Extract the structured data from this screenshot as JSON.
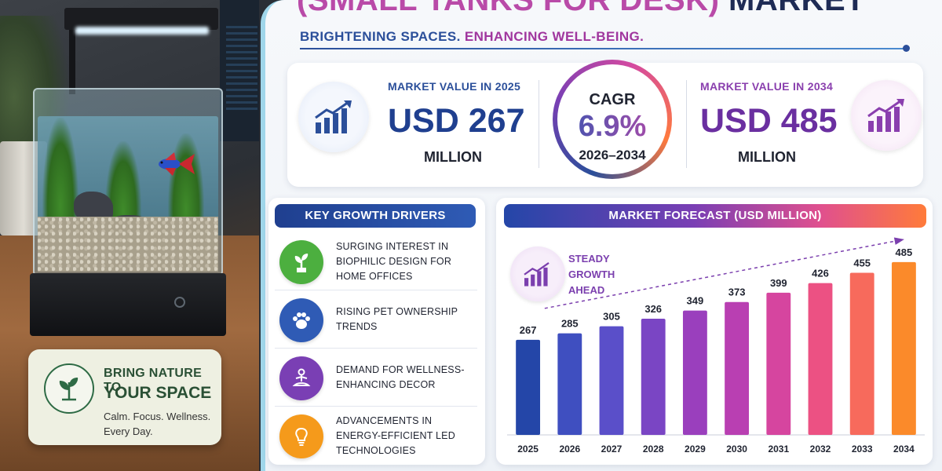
{
  "header": {
    "title_part1": "(SMALL TANKS FOR DESK)",
    "title_part2": "MARKET",
    "tagline_part1": "BRIGHTENING SPACES.",
    "tagline_part2": "ENHANCING WELL-BEING."
  },
  "stats": {
    "value_2025": {
      "label": "MARKET VALUE IN 2025",
      "amount": "USD 267",
      "unit": "MILLION"
    },
    "cagr": {
      "label": "CAGR",
      "value": "6.9%",
      "period": "2026–2034"
    },
    "value_2034": {
      "label": "MARKET VALUE IN 2034",
      "amount": "USD 485",
      "unit": "MILLION"
    }
  },
  "drivers": {
    "heading": "KEY GROWTH DRIVERS",
    "items": [
      {
        "text": "SURGING INTEREST IN BIOPHILIC DESIGN FOR HOME OFFICES",
        "icon": "plant-icon",
        "color": "#4caf3f"
      },
      {
        "text": "RISING PET OWNERSHIP TRENDS",
        "icon": "paw-icon",
        "color": "#2f5bb5"
      },
      {
        "text": "DEMAND FOR WELLNESS-ENHANCING DECOR",
        "icon": "meditation-icon",
        "color": "#7a3fb4"
      },
      {
        "text": "ADVANCEMENTS IN ENERGY-EFFICIENT LED TECHNOLOGIES",
        "icon": "lightbulb-icon",
        "color": "#f59a1b"
      }
    ]
  },
  "forecast": {
    "heading": "MARKET FORECAST (USD MILLION)",
    "note": "STEADY GROWTH AHEAD"
  },
  "promo": {
    "line1": "BRING NATURE TO",
    "line2": "YOUR SPACE",
    "sub": "Calm. Focus. Wellness. Every Day."
  },
  "colors": {
    "bar_gradient": [
      "#2446a8",
      "#3f4fc0",
      "#5a4fc9",
      "#7a45c4",
      "#9a3fbd",
      "#b93fb2",
      "#d6459f",
      "#ec5183",
      "#f76a5c",
      "#fb8a2a"
    ]
  },
  "chart_data": {
    "type": "bar",
    "title": "MARKET FORECAST (USD MILLION)",
    "categories": [
      "2025",
      "2026",
      "2027",
      "2028",
      "2029",
      "2030",
      "2031",
      "2032",
      "2033",
      "2034"
    ],
    "values": [
      267,
      285,
      305,
      326,
      349,
      373,
      399,
      426,
      455,
      485
    ],
    "ylim": [
      0,
      520
    ],
    "grid": false,
    "trend_arrow": true
  }
}
